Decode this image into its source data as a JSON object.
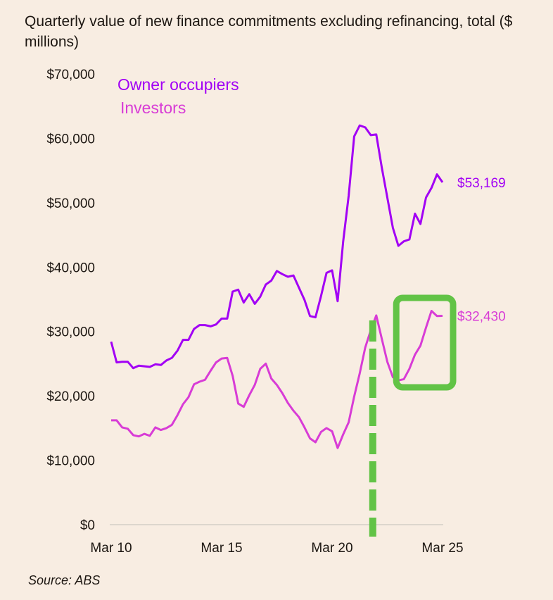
{
  "chart_data": {
    "type": "line",
    "title": "Quarterly value of new finance commitments excluding refinancing, total ($ millions)",
    "source": "Source: ABS",
    "xlabel": "",
    "ylabel": "",
    "x_start": "Mar 10",
    "x_end": "Mar 25",
    "x_frequency": "quarterly",
    "x_ticks": [
      "Mar 10",
      "Mar 15",
      "Mar 20",
      "Mar 25"
    ],
    "y_ticks": [
      "$0",
      "$10,000",
      "$20,000",
      "$30,000",
      "$40,000",
      "$50,000",
      "$60,000",
      "$70,000"
    ],
    "ylim": [
      0,
      70000
    ],
    "grid": false,
    "legend_placement": "top-left",
    "series": [
      {
        "name": "Owner occupiers",
        "color": "#a200f5",
        "end_label": "$53,169",
        "values": [
          28400,
          25200,
          25300,
          25300,
          24300,
          24700,
          24600,
          24500,
          24900,
          24800,
          25500,
          25900,
          27000,
          28700,
          28700,
          30400,
          31000,
          31000,
          30800,
          31100,
          32000,
          32000,
          36200,
          36500,
          34500,
          35800,
          34300,
          35400,
          37300,
          37900,
          39400,
          38900,
          38500,
          38700,
          36800,
          34900,
          32400,
          32200,
          35500,
          39100,
          39500,
          34700,
          43900,
          51100,
          60300,
          62000,
          61700,
          60500,
          60600,
          55500,
          50800,
          46100,
          43300,
          44000,
          44300,
          48300,
          46700,
          50800,
          52300,
          54400,
          53169
        ]
      },
      {
        "name": "Investors",
        "color": "#d83cd6",
        "end_label": "$32,430",
        "values": [
          16200,
          16200,
          15100,
          14900,
          13900,
          13700,
          14100,
          13800,
          15100,
          14700,
          15000,
          15500,
          17000,
          18700,
          19800,
          21800,
          22200,
          22500,
          23900,
          25200,
          25800,
          25900,
          23100,
          18800,
          18300,
          20100,
          21700,
          24200,
          25000,
          22700,
          21700,
          20400,
          18900,
          17700,
          16700,
          15100,
          13400,
          12800,
          14400,
          15000,
          14500,
          11900,
          14000,
          15900,
          19900,
          23500,
          27500,
          30200,
          32500,
          28900,
          25300,
          22900,
          22400,
          22600,
          24200,
          26400,
          27800,
          30600,
          33200,
          32400,
          32430
        ]
      }
    ],
    "annotations": {
      "color": "#62c346",
      "dashed_line_at": "Mar 22",
      "box_range": [
        "Mar 23",
        "Mar 25"
      ]
    }
  }
}
